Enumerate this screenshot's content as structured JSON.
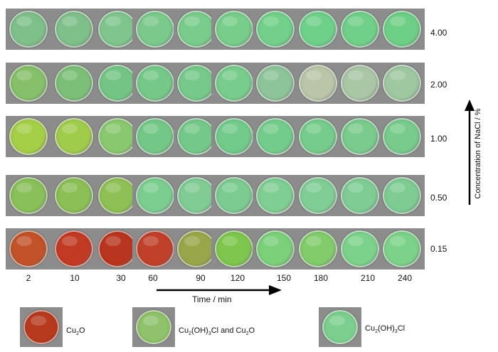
{
  "row_labels": [
    "4.00",
    "2.00",
    "1.00",
    "0.50",
    "0.15"
  ],
  "time_labels": [
    "2",
    "10",
    "30",
    "60",
    "90",
    "120",
    "150",
    "180",
    "210",
    "240"
  ],
  "x_axis_title": "Time / min",
  "y_axis_title": "Concentration of NaCl / %",
  "legend": [
    {
      "text_main": "Cu",
      "sub1": "2",
      "rest": "O",
      "color": "#b83a1e"
    },
    {
      "text_main": "Cu",
      "sub1": "2",
      "rest": "(OH)",
      "sub2": "3",
      "rest2": "Cl and Cu",
      "sub3": "2",
      "rest3": "O",
      "color": "#8fc26a"
    },
    {
      "text_main": "Cu",
      "sub1": "2",
      "rest": "(OH)",
      "sub2": "3",
      "rest2": "Cl",
      "color": "#7ccf8e"
    }
  ],
  "dish_colors": [
    [
      "#7fbf8a",
      "#7fbf8a",
      "#7fc58d",
      "#7cc98c",
      "#79cc8b",
      "#78cd8a",
      "#72d08a",
      "#6fd089",
      "#70cf88",
      "#6ecf86"
    ],
    [
      "#86c06a",
      "#7cbf78",
      "#74c585",
      "#76c889",
      "#76c98a",
      "#78cc8c",
      "#8ec49a",
      "#b9c6a8",
      "#a9c6a5",
      "#9fc8a0"
    ],
    [
      "#a6cf48",
      "#a0cc4c",
      "#8ac870",
      "#74c887",
      "#74c98a",
      "#72cb8a",
      "#74cc8c",
      "#76cc8c",
      "#7acb8d",
      "#78cb8c"
    ],
    [
      "#89c05a",
      "#8cbf56",
      "#8fc055",
      "#7ccd90",
      "#80cc94",
      "#7ccb90",
      "#7fce94",
      "#80cd95",
      "#7fcc94",
      "#7ecc93"
    ],
    [
      "#c2522a",
      "#c23a24",
      "#b8351f",
      "#c0402a",
      "#9aa64a",
      "#7ec64e",
      "#7cd07a",
      "#82cc6c",
      "#7cd28a",
      "#7cd288"
    ]
  ]
}
